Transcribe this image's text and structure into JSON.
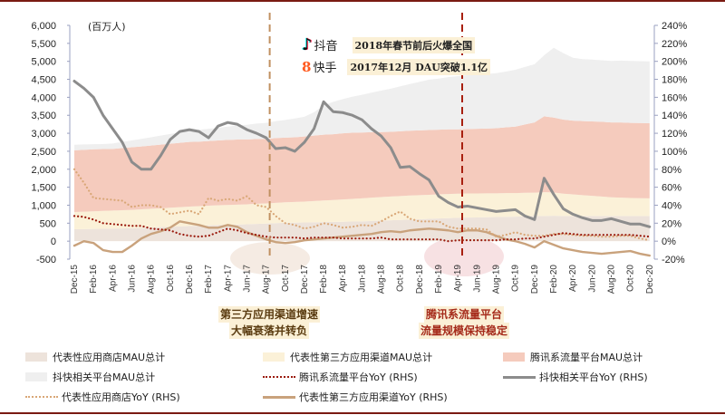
{
  "chart_data": {
    "type": "area",
    "unit_label": "(百万人)",
    "ylim_left": [
      -500,
      6000
    ],
    "ylim_right": [
      -20,
      240
    ],
    "left_ticks": [
      "-500",
      "0",
      "500",
      "1,000",
      "1,500",
      "2,000",
      "2,500",
      "3,000",
      "3,500",
      "4,000",
      "4,500",
      "5,000",
      "5,500",
      "6,000"
    ],
    "right_ticks": [
      "-20%",
      "0%",
      "20%",
      "40%",
      "60%",
      "80%",
      "100%",
      "120%",
      "140%",
      "160%",
      "180%",
      "200%",
      "220%",
      "240%"
    ],
    "x_tick_labels": [
      "Dec-15",
      "Feb-16",
      "Apr-16",
      "Jun-16",
      "Aug-16",
      "Oct-16",
      "Dec-16",
      "Feb-17",
      "Apr-17",
      "Jun-17",
      "Aug-17",
      "Oct-17",
      "Dec-17",
      "Feb-18",
      "Apr-18",
      "Jun-18",
      "Aug-18",
      "Oct-18",
      "Dec-18",
      "Feb-19",
      "Apr-19",
      "Jun-19",
      "Aug-19",
      "Oct-19",
      "Dec-19",
      "Feb-20",
      "Apr-20",
      "Jun-20",
      "Aug-20",
      "Oct-20",
      "Dec-20"
    ],
    "stacked_areas": [
      {
        "name": "代表性应用商店MAU总计",
        "color": "#ede3db",
        "values": [
          330,
          335,
          340,
          345,
          350,
          355,
          360,
          370,
          380,
          390,
          400,
          410,
          420,
          430,
          440,
          450,
          455,
          460,
          470,
          480,
          490,
          500,
          510,
          515,
          520,
          525,
          530,
          535,
          540,
          545,
          550,
          560,
          570,
          580,
          590,
          600,
          610,
          620,
          630,
          640,
          650,
          655,
          660,
          665,
          670,
          675,
          680,
          690,
          700,
          700,
          705,
          700,
          700,
          700,
          700,
          700,
          700,
          700,
          700,
          700,
          700
        ]
      },
      {
        "name": "代表性第三方应用渠道MAU总计",
        "color": "#fbf1d8",
        "values": [
          480,
          485,
          490,
          495,
          500,
          505,
          510,
          515,
          520,
          525,
          530,
          535,
          540,
          545,
          545,
          550,
          550,
          555,
          555,
          560,
          560,
          565,
          570,
          575,
          580,
          590,
          600,
          610,
          620,
          630,
          640,
          650,
          655,
          660,
          665,
          670,
          670,
          670,
          670,
          670,
          670,
          670,
          665,
          665,
          660,
          660,
          655,
          655,
          650,
          660,
          650,
          620,
          600,
          580,
          560,
          540,
          520,
          510,
          500,
          495,
          490
        ]
      },
      {
        "name": "腾讯系流量平台MAU总计",
        "color": "#f5cbbd",
        "values": [
          1715,
          1720,
          1725,
          1720,
          1715,
          1730,
          1740,
          1750,
          1760,
          1770,
          1780,
          1790,
          1800,
          1790,
          1800,
          1800,
          1810,
          1810,
          1800,
          1800,
          1790,
          1800,
          1800,
          1800,
          1810,
          1820,
          1830,
          1830,
          1840,
          1840,
          1830,
          1820,
          1810,
          1800,
          1800,
          1800,
          1800,
          1800,
          1800,
          1800,
          1790,
          1790,
          1800,
          1800,
          1810,
          1830,
          1850,
          1900,
          1950,
          2110,
          2080,
          2060,
          2050,
          2060,
          2070,
          2080,
          2080,
          2090,
          2090,
          2090,
          2090
        ]
      },
      {
        "name": "抖快相关平台MAU总计",
        "color": "#efefef",
        "values": [
          155,
          150,
          140,
          140,
          150,
          170,
          190,
          210,
          230,
          250,
          270,
          290,
          310,
          330,
          340,
          350,
          370,
          390,
          410,
          430,
          450,
          470,
          490,
          520,
          550,
          650,
          810,
          900,
          950,
          1000,
          1050,
          1100,
          1150,
          1200,
          1250,
          1300,
          1350,
          1400,
          1420,
          1450,
          1480,
          1500,
          1510,
          1520,
          1530,
          1550,
          1580,
          1600,
          1620,
          1700,
          1940,
          1850,
          1750,
          1720,
          1720,
          1710,
          1710,
          1720,
          1720,
          1720,
          1720
        ]
      }
    ],
    "lines": [
      {
        "name": "腾讯系流量平台YoY (RHS)",
        "color": "#9b1b0e",
        "style": "dotted",
        "values": [
          28,
          27,
          24,
          20,
          19,
          18,
          17,
          17,
          14,
          13,
          12,
          8,
          6,
          5,
          6,
          10,
          14,
          12,
          9,
          7,
          5,
          4,
          4,
          4,
          3,
          4,
          4,
          4,
          3,
          3,
          3,
          3,
          4,
          2,
          2,
          2,
          2,
          2,
          2,
          0,
          1,
          1,
          1,
          1,
          1,
          2,
          2,
          3,
          3,
          5,
          7,
          9,
          8,
          7,
          7,
          7,
          7,
          7,
          7,
          6,
          5
        ]
      },
      {
        "name": "抖快相关平台YoY (RHS)",
        "color": "#8c8c8c",
        "style": "solid",
        "values": [
          178,
          170,
          160,
          140,
          125,
          110,
          88,
          80,
          80,
          95,
          113,
          122,
          124,
          122,
          115,
          128,
          132,
          130,
          124,
          120,
          115,
          103,
          104,
          100,
          110,
          125,
          155,
          144,
          143,
          140,
          135,
          125,
          117,
          104,
          82,
          83,
          75,
          68,
          50,
          43,
          38,
          39,
          37,
          35,
          33,
          34,
          35,
          28,
          24,
          70,
          52,
          36,
          30,
          26,
          23,
          23,
          25,
          22,
          19,
          19,
          16
        ]
      },
      {
        "name": "代表性应用商店YoY (RHS)",
        "color": "#d9a777",
        "style": "dotted",
        "values": [
          80,
          65,
          48,
          47,
          46,
          45,
          38,
          40,
          40,
          38,
          30,
          32,
          34,
          30,
          48,
          45,
          47,
          45,
          50,
          40,
          38,
          28,
          20,
          18,
          14,
          16,
          20,
          18,
          15,
          16,
          18,
          17,
          22,
          28,
          33,
          25,
          22,
          22,
          22,
          16,
          14,
          14,
          14,
          13,
          5,
          7,
          10,
          7,
          6,
          6,
          8,
          8,
          7,
          6,
          6,
          5,
          5,
          6,
          6,
          3,
          1
        ]
      },
      {
        "name": "代表性第三方应用渠道YoY (RHS)",
        "color": "#c9a27c",
        "style": "solid",
        "values": [
          -5,
          0,
          -2,
          -10,
          -12,
          -12,
          -5,
          3,
          8,
          11,
          15,
          22,
          20,
          18,
          15,
          15,
          18,
          16,
          10,
          6,
          2,
          -1,
          -2,
          -1,
          1,
          2,
          3,
          4,
          5,
          6,
          7,
          8,
          10,
          11,
          10,
          12,
          13,
          14,
          13,
          12,
          10,
          12,
          12,
          10,
          6,
          2,
          0,
          -3,
          -7,
          0,
          -4,
          -8,
          -10,
          -12,
          -13,
          -14,
          -13,
          -12,
          -11,
          -14,
          -16
        ]
      }
    ],
    "grid": false,
    "legend_position": "bottom"
  },
  "annotations": {
    "douyin_label": "抖音",
    "douyin_note": "2018年春节前后火爆全国",
    "kuaishou_label": "快手",
    "kuaishou_note": "2017年12月 DAU突破1.1亿",
    "note1_line1": "第三方应用渠道增速",
    "note1_line2": "大幅衰落并转负",
    "note2_line1": "腾讯系流量平台",
    "note2_line2": "流量规模保持稳定"
  },
  "legend": [
    {
      "label": "代表性应用商店MAU总计",
      "kind": "area",
      "color": "#ede3db"
    },
    {
      "label": "代表性第三方应用渠道MAU总计",
      "kind": "area",
      "color": "#fbf1d8"
    },
    {
      "label": "腾讯系流量平台MAU总计",
      "kind": "area",
      "color": "#f5cbbd"
    },
    {
      "label": "抖快相关平台MAU总计",
      "kind": "area",
      "color": "#efefef"
    },
    {
      "label": "腾讯系流量平台YoY (RHS)",
      "kind": "dotted",
      "color": "#9b1b0e"
    },
    {
      "label": "抖快相关平台YoY (RHS)",
      "kind": "solid",
      "color": "#8c8c8c"
    },
    {
      "label": "代表性应用商店YoY (RHS)",
      "kind": "dotted",
      "color": "#d9a777"
    },
    {
      "label": "代表性第三方应用渠道YoY (RHS)",
      "kind": "solid",
      "color": "#c9a27c"
    }
  ]
}
